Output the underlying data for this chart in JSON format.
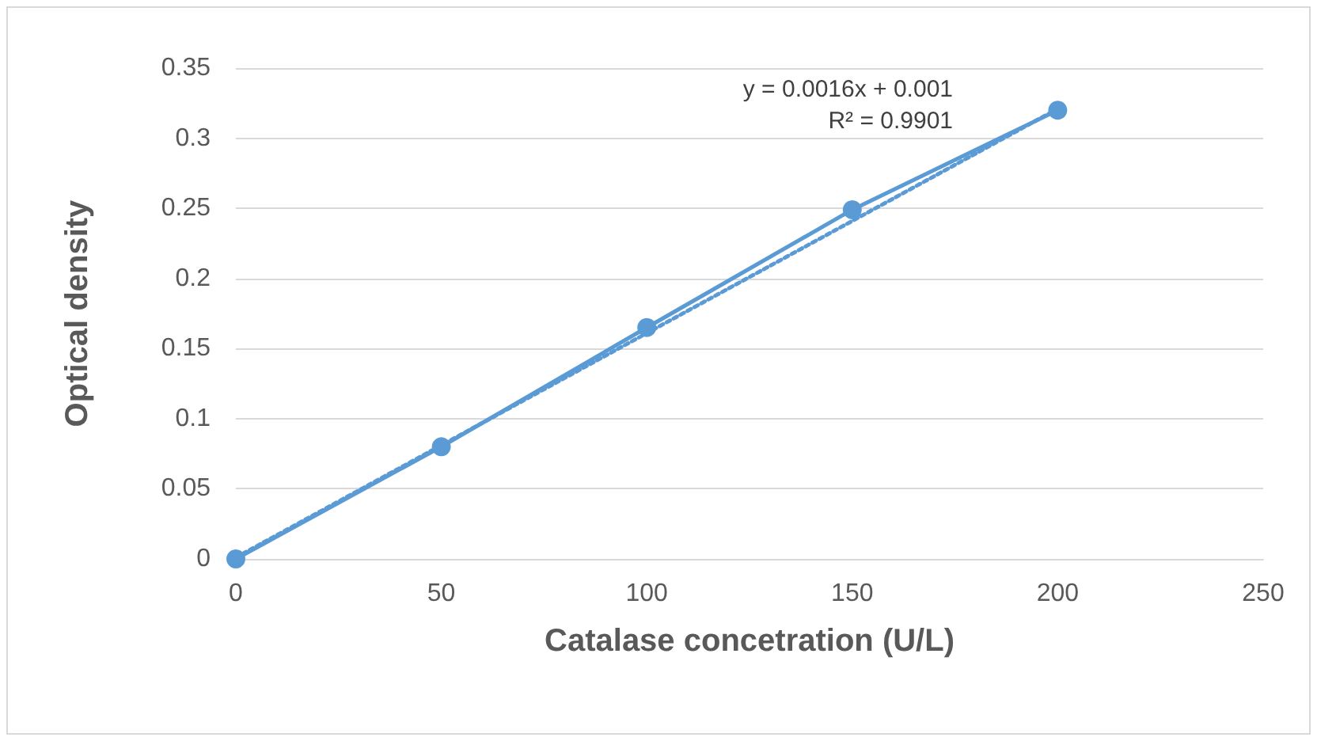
{
  "chart_data": {
    "type": "line",
    "xlabel": "Catalase concetration (U/L)",
    "ylabel": "Optical density",
    "annotations": [
      "y = 0.0016x + 0.001",
      "R² = 0.9901"
    ],
    "x": [
      0,
      50,
      100,
      150,
      200
    ],
    "series": [
      {
        "color": "#5b9bd5",
        "values": [
          0,
          0.08,
          0.165,
          0.249,
          0.32
        ],
        "marker": "circle",
        "line_style": "solid"
      },
      {
        "type": "line",
        "color": "#5b9bd5",
        "x": [
          0,
          200
        ],
        "values": [
          0.001,
          0.321
        ],
        "marker": "none",
        "line_style": "dotted"
      }
    ],
    "xlim": [
      0,
      250
    ],
    "xticks": [
      0,
      50,
      100,
      150,
      200,
      250
    ],
    "ylim": [
      0,
      0.35
    ],
    "yticks": [
      0,
      0.05,
      0.1,
      0.15,
      0.2,
      0.25,
      0.3,
      0.35
    ],
    "grid": "y"
  }
}
